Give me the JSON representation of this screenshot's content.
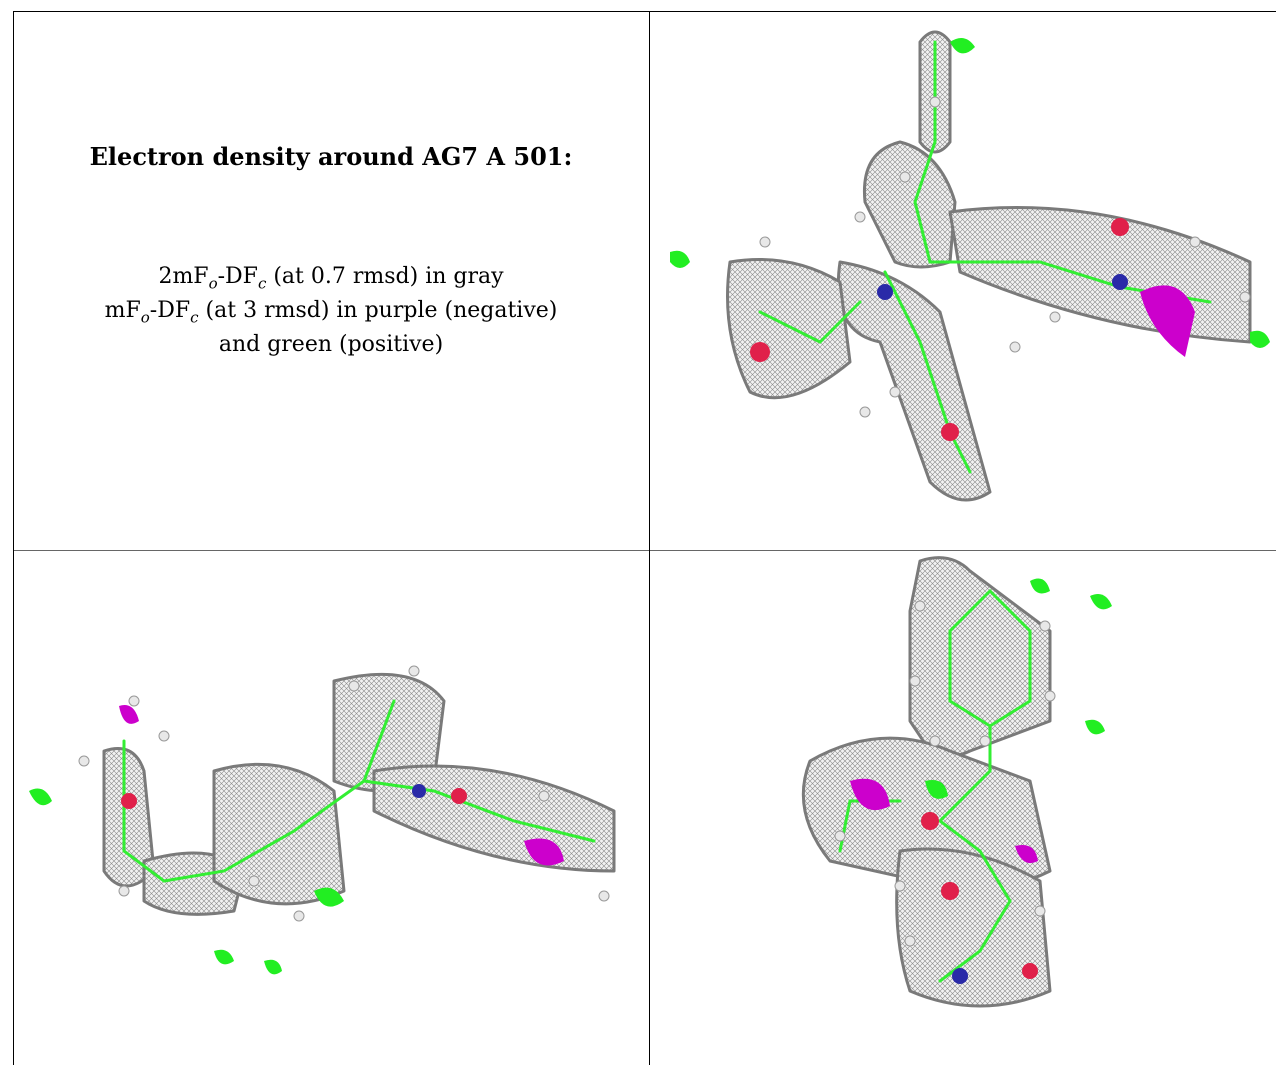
{
  "caption": {
    "title": "Electron density around AG7 A 501:",
    "line1": {
      "pre": "2mF",
      "sub1": "o",
      "mid": "-DF",
      "sub2": "c",
      "post": " (at 0.7 rmsd) in gray"
    },
    "line2": {
      "pre": "mF",
      "sub1": "o",
      "mid": "-DF",
      "sub2": "c",
      "post": " (at 3 rmsd) in purple (negative)"
    },
    "line3": "and green (positive)"
  },
  "map_colors": {
    "gray_density": "#9a9a9a",
    "positive_density": "#22ee22",
    "negative_density": "#cc00cc",
    "carbon": "#33ee33",
    "oxygen": "#e0204a",
    "nitrogen": "#2a2aa8",
    "fluorine": "#8fd8e0",
    "hydrogen": "#e8e8e8"
  },
  "panels": [
    {
      "name": "view-top-right",
      "icon": "density-view-icon"
    },
    {
      "name": "view-bottom-left",
      "icon": "density-view-icon"
    },
    {
      "name": "view-bottom-right",
      "icon": "density-view-icon"
    }
  ]
}
